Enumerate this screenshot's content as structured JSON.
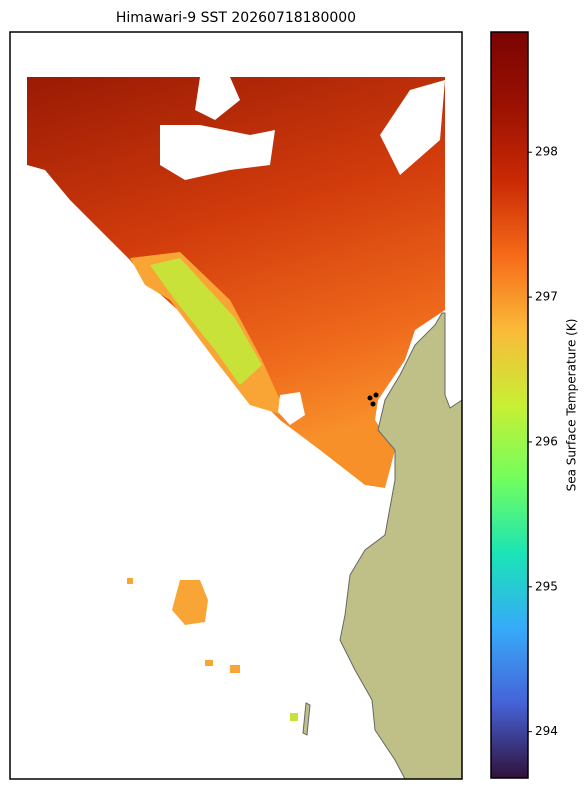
{
  "title": "Himawari-9 SST 20260718180000",
  "colorbar": {
    "label": "Sea Surface Temperature (K)",
    "lim": [
      293.68,
      298.83
    ],
    "ticks": [
      294,
      295,
      296,
      297,
      298
    ]
  }
}
